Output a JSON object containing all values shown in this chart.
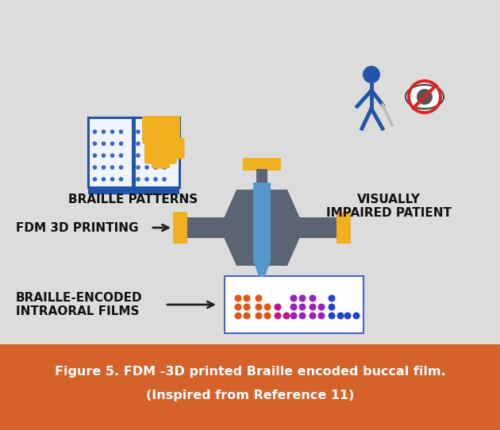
{
  "bg_color": "#dcdcdc",
  "caption_bg_color": "#d4622a",
  "caption_text_color": "#ffffff",
  "caption_line1": "Figure 5. FDM -3D printed Braille encoded buccal film.",
  "caption_line2": "(Inspired from Reference 11)",
  "label_braille": "BRAILLE PATTERNS",
  "label_fdm": "FDM 3D PRINTING",
  "label_film": "BRAILLE-ENCODED\nINTRAORAL FILMS",
  "label_visually": "VISUALLY\nIMPAIRED PATIENT",
  "text_color": "#111111",
  "blue_color": "#2255aa",
  "yellow_color": "#f0b020",
  "gray_color": "#5a6472",
  "light_blue": "#5599cc",
  "red_color": "#dd2222",
  "dot_colors_film": [
    "#e05518",
    "#cc1188",
    "#9922bb",
    "#2244cc",
    "#7777aa"
  ],
  "book_dot_color": "#3366cc",
  "fig_w": 6.3,
  "fig_h": 5.42,
  "dpi": 100
}
